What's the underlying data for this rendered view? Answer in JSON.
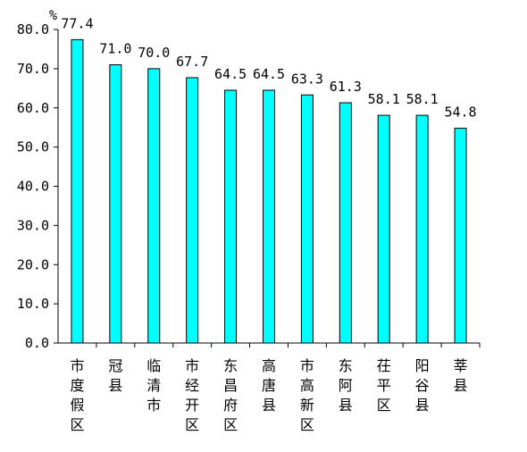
{
  "chart_data": {
    "type": "bar",
    "unit": "%",
    "categories": [
      "市度假区",
      "冠县",
      "临清市",
      "市经开区",
      "东昌府区",
      "高唐县",
      "市高新区",
      "东阿县",
      "茌平区",
      "阳谷县",
      "莘县"
    ],
    "values": [
      77.4,
      71.0,
      70.0,
      67.7,
      64.5,
      64.5,
      63.3,
      61.3,
      58.1,
      58.1,
      54.8
    ],
    "data_labels": [
      "77.4",
      "71.0",
      "70.0",
      "67.7",
      "64.5",
      "64.5",
      "63.3",
      "61.3",
      "58.1",
      "58.1",
      "54.8"
    ],
    "yticks": [
      "0.0",
      "10.0",
      "20.0",
      "30.0",
      "40.0",
      "50.0",
      "60.0",
      "70.0",
      "80.0"
    ],
    "ylim": [
      0,
      80
    ],
    "bar_color": "#00FFFF",
    "bar_stroke": "#000000",
    "grid": false,
    "legend": "none"
  }
}
